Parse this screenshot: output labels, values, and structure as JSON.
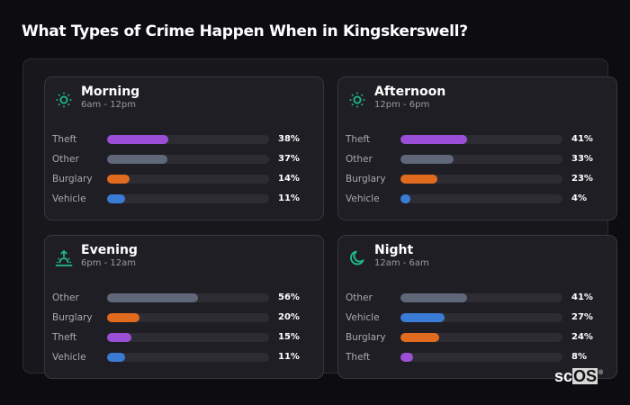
{
  "page": {
    "title": "What Types of Crime Happen When in Kingskerswell?"
  },
  "colors": {
    "theft": "#9b4fd6",
    "other": "#5f6778",
    "burglary": "#e06a1e",
    "vehicle": "#3a7bd5",
    "icon_accent": "#1fb98a",
    "track": "#2c2c32"
  },
  "cards": [
    {
      "title": "Morning",
      "subtitle": "6am - 12pm",
      "icon": "sun-icon",
      "rows": [
        {
          "label": "Theft",
          "value": 38,
          "pct": "38%",
          "color": "#9b4fd6"
        },
        {
          "label": "Other",
          "value": 37,
          "pct": "37%",
          "color": "#5f6778"
        },
        {
          "label": "Burglary",
          "value": 14,
          "pct": "14%",
          "color": "#e06a1e"
        },
        {
          "label": "Vehicle",
          "value": 11,
          "pct": "11%",
          "color": "#3a7bd5"
        }
      ]
    },
    {
      "title": "Afternoon",
      "subtitle": "12pm - 6pm",
      "icon": "sun-icon",
      "rows": [
        {
          "label": "Theft",
          "value": 41,
          "pct": "41%",
          "color": "#9b4fd6"
        },
        {
          "label": "Other",
          "value": 33,
          "pct": "33%",
          "color": "#5f6778"
        },
        {
          "label": "Burglary",
          "value": 23,
          "pct": "23%",
          "color": "#e06a1e"
        },
        {
          "label": "Vehicle",
          "value": 4,
          "pct": "4%",
          "color": "#3a7bd5"
        }
      ]
    },
    {
      "title": "Evening",
      "subtitle": "6pm - 12am",
      "icon": "sunset-icon",
      "rows": [
        {
          "label": "Other",
          "value": 56,
          "pct": "56%",
          "color": "#5f6778"
        },
        {
          "label": "Burglary",
          "value": 20,
          "pct": "20%",
          "color": "#e06a1e"
        },
        {
          "label": "Theft",
          "value": 15,
          "pct": "15%",
          "color": "#9b4fd6"
        },
        {
          "label": "Vehicle",
          "value": 11,
          "pct": "11%",
          "color": "#3a7bd5"
        }
      ]
    },
    {
      "title": "Night",
      "subtitle": "12am - 6am",
      "icon": "moon-icon",
      "rows": [
        {
          "label": "Other",
          "value": 41,
          "pct": "41%",
          "color": "#5f6778"
        },
        {
          "label": "Vehicle",
          "value": 27,
          "pct": "27%",
          "color": "#3a7bd5"
        },
        {
          "label": "Burglary",
          "value": 24,
          "pct": "24%",
          "color": "#e06a1e"
        },
        {
          "label": "Theft",
          "value": 8,
          "pct": "8%",
          "color": "#9b4fd6"
        }
      ]
    }
  ],
  "logo": {
    "prefix": "sc",
    "boxed": "OS",
    "mark": "®"
  }
}
